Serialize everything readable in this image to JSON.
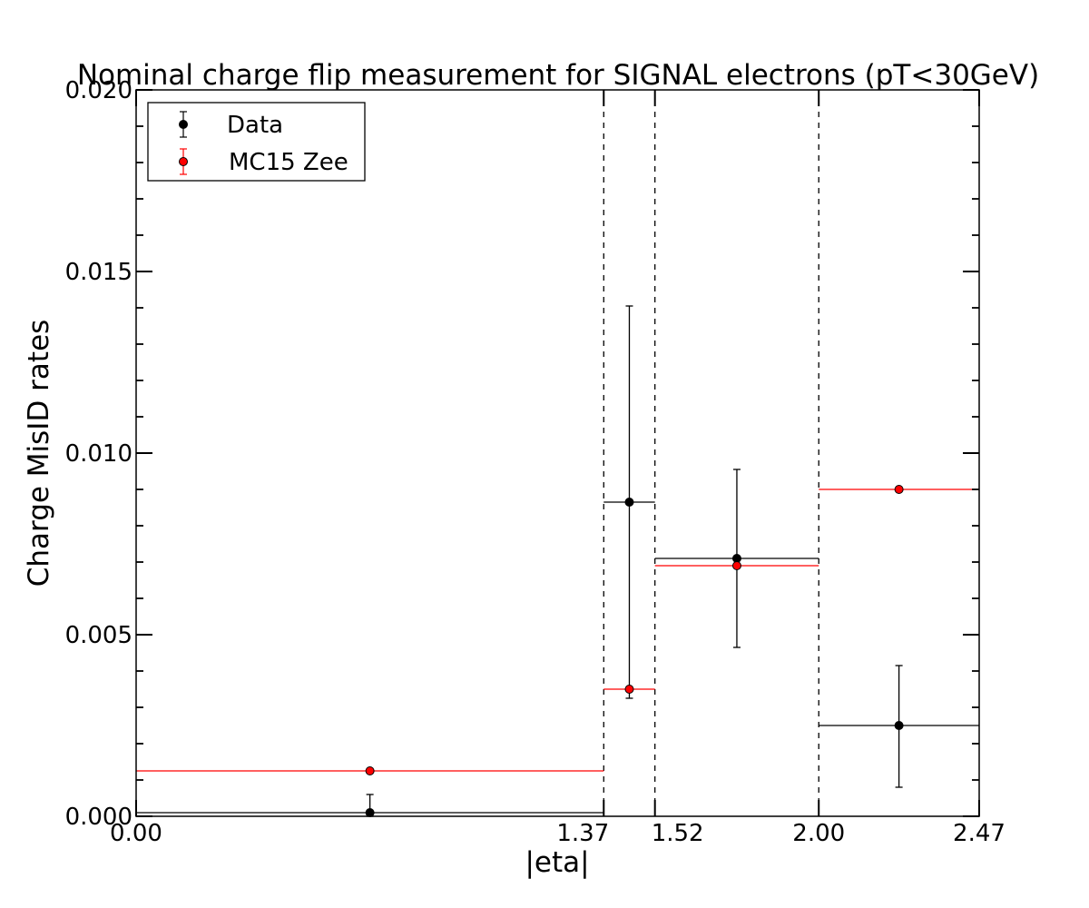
{
  "chart_data": {
    "type": "scatter",
    "title": "Nominal charge flip measurement for SIGNAL electrons (pT<30GeV)",
    "xlabel": "|eta|",
    "ylabel": "Charge MisID rates",
    "xlim": [
      0.0,
      2.47
    ],
    "ylim": [
      0.0,
      0.02
    ],
    "x_ticks": [
      0.0,
      1.37,
      1.52,
      2.0,
      2.47
    ],
    "x_tick_labels": [
      "0.00",
      "1.37",
      "1.52",
      "2.00",
      "2.47"
    ],
    "y_ticks": [
      0.0,
      0.005,
      0.01,
      0.015,
      0.02
    ],
    "y_tick_labels": [
      "0.000",
      "0.005",
      "0.010",
      "0.015",
      "0.020"
    ],
    "bin_edges": [
      0.0,
      1.37,
      1.52,
      2.0,
      2.47
    ],
    "bin_boundaries_dashed": [
      1.37,
      1.52,
      2.0
    ],
    "legend_position": "top-left",
    "grid": false,
    "series": [
      {
        "name": "Data",
        "color": "#000000",
        "points": [
          {
            "x": 0.685,
            "y": 0.0001,
            "xerr": [
              0.0,
              1.37
            ],
            "yerr": [
              0.0,
              0.0006
            ]
          },
          {
            "x": 1.445,
            "y": 0.00865,
            "xerr": [
              1.37,
              1.52
            ],
            "yerr": [
              0.00325,
              0.01405
            ]
          },
          {
            "x": 1.76,
            "y": 0.0071,
            "xerr": [
              1.52,
              2.0
            ],
            "yerr": [
              0.00465,
              0.00955
            ]
          },
          {
            "x": 2.235,
            "y": 0.0025,
            "xerr": [
              2.0,
              2.47
            ],
            "yerr": [
              0.0008,
              0.00415
            ]
          }
        ]
      },
      {
        "name": "MC15 Zee",
        "color": "#ff0000",
        "points": [
          {
            "x": 0.685,
            "y": 0.00125,
            "xerr": [
              0.0,
              1.37
            ],
            "yerr": [
              0.00125,
              0.00125
            ]
          },
          {
            "x": 1.445,
            "y": 0.0035,
            "xerr": [
              1.37,
              1.52
            ],
            "yerr": [
              0.0035,
              0.0035
            ]
          },
          {
            "x": 1.76,
            "y": 0.0069,
            "xerr": [
              1.52,
              2.0
            ],
            "yerr": [
              0.0069,
              0.0069
            ]
          },
          {
            "x": 2.235,
            "y": 0.009,
            "xerr": [
              2.0,
              2.47
            ],
            "yerr": [
              0.009,
              0.009
            ]
          }
        ]
      }
    ]
  }
}
